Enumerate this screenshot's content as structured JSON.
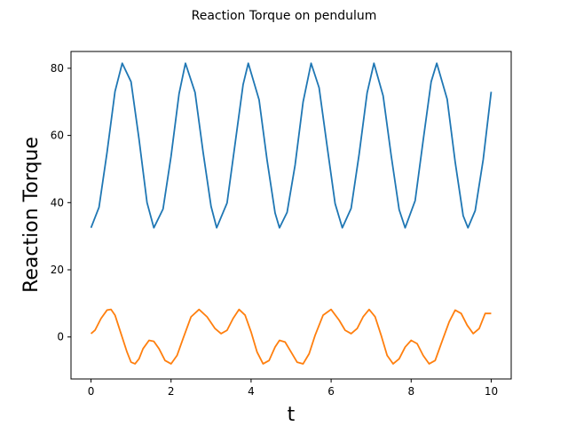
{
  "chart_data": {
    "type": "line",
    "title": "Reaction Torque on pendulum",
    "xlabel": "t",
    "ylabel": "Reaction Torque",
    "xlim": [
      -0.5,
      10.5
    ],
    "ylim": [
      -12.5,
      85
    ],
    "xticks": [
      0,
      2,
      4,
      6,
      8,
      10
    ],
    "yticks": [
      0,
      20,
      40,
      60,
      80
    ],
    "grid": false,
    "legend": false,
    "series": [
      {
        "color": "#1f77b4",
        "x": [
          0,
          0.2,
          0.4,
          0.6,
          0.78,
          1.0,
          1.2,
          1.4,
          1.57,
          1.8,
          2.0,
          2.2,
          2.36,
          2.6,
          2.8,
          3.0,
          3.14,
          3.4,
          3.6,
          3.8,
          3.93,
          4.2,
          4.4,
          4.6,
          4.71,
          4.9,
          5.1,
          5.3,
          5.5,
          5.7,
          5.9,
          6.1,
          6.28,
          6.5,
          6.7,
          6.9,
          7.07,
          7.3,
          7.5,
          7.7,
          7.85,
          8.1,
          8.3,
          8.5,
          8.64,
          8.9,
          9.1,
          9.3,
          9.42,
          9.6,
          9.8,
          10.0
        ],
        "y": [
          32.5,
          38.6,
          54.9,
          73.1,
          81.5,
          76.0,
          58.9,
          40.0,
          32.5,
          38.1,
          53.8,
          72.4,
          81.5,
          72.8,
          55.1,
          38.9,
          32.5,
          39.9,
          57.5,
          75.1,
          81.5,
          70.6,
          52.6,
          36.9,
          32.5,
          37.1,
          51.2,
          70.0,
          81.5,
          74.2,
          56.8,
          39.7,
          32.5,
          38.3,
          54.4,
          72.7,
          81.5,
          71.8,
          54.1,
          37.9,
          32.5,
          40.6,
          58.5,
          76.0,
          81.5,
          70.8,
          52.1,
          36.1,
          32.5,
          37.6,
          52.8,
          73.0
        ]
      },
      {
        "color": "#ff7f0e",
        "x": [
          0,
          0.1,
          0.25,
          0.4,
          0.5,
          0.6,
          0.75,
          0.9,
          1.0,
          1.1,
          1.2,
          1.3,
          1.45,
          1.57,
          1.7,
          1.85,
          2.0,
          2.15,
          2.3,
          2.5,
          2.7,
          2.9,
          3.1,
          3.25,
          3.4,
          3.55,
          3.7,
          3.85,
          4.0,
          4.15,
          4.3,
          4.45,
          4.6,
          4.71,
          4.85,
          5.0,
          5.15,
          5.3,
          5.45,
          5.6,
          5.8,
          6.0,
          6.2,
          6.35,
          6.5,
          6.65,
          6.8,
          6.95,
          7.1,
          7.25,
          7.4,
          7.55,
          7.7,
          7.85,
          8.0,
          8.15,
          8.3,
          8.45,
          8.6,
          8.75,
          8.95,
          9.1,
          9.25,
          9.4,
          9.55,
          9.7,
          9.85,
          10.0
        ],
        "y": [
          1.0,
          2.0,
          5.5,
          8.0,
          8.2,
          6.5,
          1.0,
          -4.5,
          -7.5,
          -8.0,
          -6.5,
          -3.5,
          -1.0,
          -1.3,
          -3.5,
          -7.0,
          -8.0,
          -5.5,
          -0.5,
          6.0,
          8.2,
          6.0,
          2.5,
          1.0,
          2.0,
          5.5,
          8.2,
          6.5,
          1.5,
          -4.5,
          -8.0,
          -7.0,
          -3.0,
          -1.0,
          -1.5,
          -4.5,
          -7.5,
          -8.0,
          -5.0,
          0.5,
          6.5,
          8.2,
          5.0,
          2.0,
          1.0,
          2.5,
          6.0,
          8.2,
          6.0,
          0.5,
          -5.5,
          -8.0,
          -6.5,
          -3.0,
          -1.0,
          -2.0,
          -5.5,
          -8.0,
          -7.0,
          -2.0,
          4.5,
          8.0,
          7.0,
          3.5,
          1.0,
          2.5,
          7.0,
          7.0
        ]
      }
    ]
  }
}
